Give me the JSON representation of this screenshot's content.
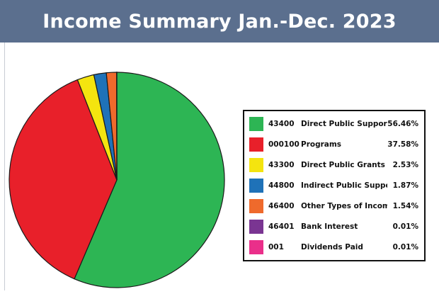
{
  "title": "Income Summary Jan.-Dec. 2023",
  "chart_data": {
    "type": "pie",
    "title": "Income Summary Jan.-Dec. 2023",
    "legend_position": "right",
    "slices": [
      {
        "code": "43400",
        "label": "Direct Public Support",
        "percent_text": "56.46%",
        "value": 56.46,
        "color": "#2db554"
      },
      {
        "code": "000100",
        "label": "Programs",
        "percent_text": "37.58%",
        "value": 37.58,
        "color": "#e8202a"
      },
      {
        "code": "43300",
        "label": "Direct Public Grants",
        "percent_text": "2.53%",
        "value": 2.53,
        "color": "#f4e40f"
      },
      {
        "code": "44800",
        "label": "Indirect Public Support",
        "percent_text": "1.87%",
        "value": 1.87,
        "color": "#1f72b8"
      },
      {
        "code": "46400",
        "label": "Other Types of Income",
        "percent_text": "1.54%",
        "value": 1.54,
        "color": "#ef6a2c"
      },
      {
        "code": "46401",
        "label": "Bank Interest",
        "percent_text": "0.01%",
        "value": 0.01,
        "color": "#7a3592"
      },
      {
        "code": "001",
        "label": "Dividends Paid",
        "percent_text": "0.01%",
        "value": 0.01,
        "color": "#ea2f8a"
      }
    ]
  }
}
